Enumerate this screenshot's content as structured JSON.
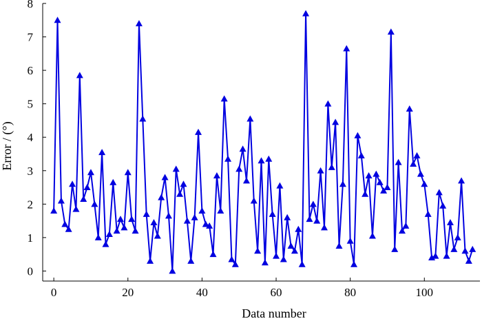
{
  "chart_data": {
    "type": "line",
    "title": "",
    "xlabel": "Data number",
    "ylabel": "Error / (°)",
    "xlim": [
      -3,
      115
    ],
    "ylim": [
      -0.3,
      8
    ],
    "xticks": [
      0,
      20,
      40,
      60,
      80,
      100
    ],
    "yticks": [
      0,
      1,
      2,
      3,
      4,
      5,
      6,
      7,
      8
    ],
    "grid": false,
    "legend": "none",
    "series": [
      {
        "color": "#0000e0",
        "marker": "triangle",
        "x": [
          0,
          1,
          2,
          3,
          4,
          5,
          6,
          7,
          8,
          9,
          10,
          11,
          12,
          13,
          14,
          15,
          16,
          17,
          18,
          19,
          20,
          21,
          22,
          23,
          24,
          25,
          26,
          27,
          28,
          29,
          30,
          31,
          32,
          33,
          34,
          35,
          36,
          37,
          38,
          39,
          40,
          41,
          42,
          43,
          44,
          45,
          46,
          47,
          48,
          49,
          50,
          51,
          52,
          53,
          54,
          55,
          56,
          57,
          58,
          59,
          60,
          61,
          62,
          63,
          64,
          65,
          66,
          67,
          68,
          69,
          70,
          71,
          72,
          73,
          74,
          75,
          76,
          77,
          78,
          79,
          80,
          81,
          82,
          83,
          84,
          85,
          86,
          87,
          88,
          89,
          90,
          91,
          92,
          93,
          94,
          95,
          96,
          97,
          98,
          99,
          100,
          101,
          102,
          103,
          104,
          105,
          106,
          107,
          108,
          109,
          110,
          111,
          112,
          113
        ],
        "y": [
          1.8,
          7.5,
          2.1,
          1.4,
          1.25,
          2.6,
          1.85,
          5.85,
          2.15,
          2.5,
          2.95,
          2.0,
          1.0,
          3.55,
          0.8,
          1.1,
          2.65,
          1.2,
          1.55,
          1.3,
          2.95,
          1.55,
          1.2,
          7.4,
          4.55,
          1.7,
          0.3,
          1.45,
          1.05,
          2.2,
          2.8,
          1.65,
          0.0,
          3.05,
          2.3,
          2.6,
          1.5,
          0.3,
          1.6,
          4.15,
          1.8,
          1.4,
          1.35,
          0.5,
          2.85,
          1.8,
          5.15,
          3.35,
          0.35,
          0.2,
          3.05,
          3.65,
          2.7,
          4.55,
          2.1,
          0.6,
          3.3,
          0.25,
          3.35,
          1.7,
          0.45,
          2.55,
          0.35,
          1.6,
          0.75,
          0.6,
          1.25,
          0.2,
          7.7,
          1.55,
          2.0,
          1.5,
          3.0,
          1.3,
          5.0,
          3.1,
          4.45,
          0.75,
          2.6,
          6.65,
          0.9,
          0.2,
          4.05,
          3.45,
          2.3,
          2.85,
          1.05,
          2.9,
          2.65,
          2.4,
          2.5,
          7.15,
          0.65,
          3.25,
          1.2,
          1.35,
          4.85,
          3.2,
          3.45,
          2.9,
          2.6,
          1.7,
          0.4,
          0.45,
          2.35,
          1.95,
          0.45,
          1.45,
          0.65,
          1.0,
          2.7,
          0.6,
          0.3,
          0.65
        ]
      }
    ]
  }
}
